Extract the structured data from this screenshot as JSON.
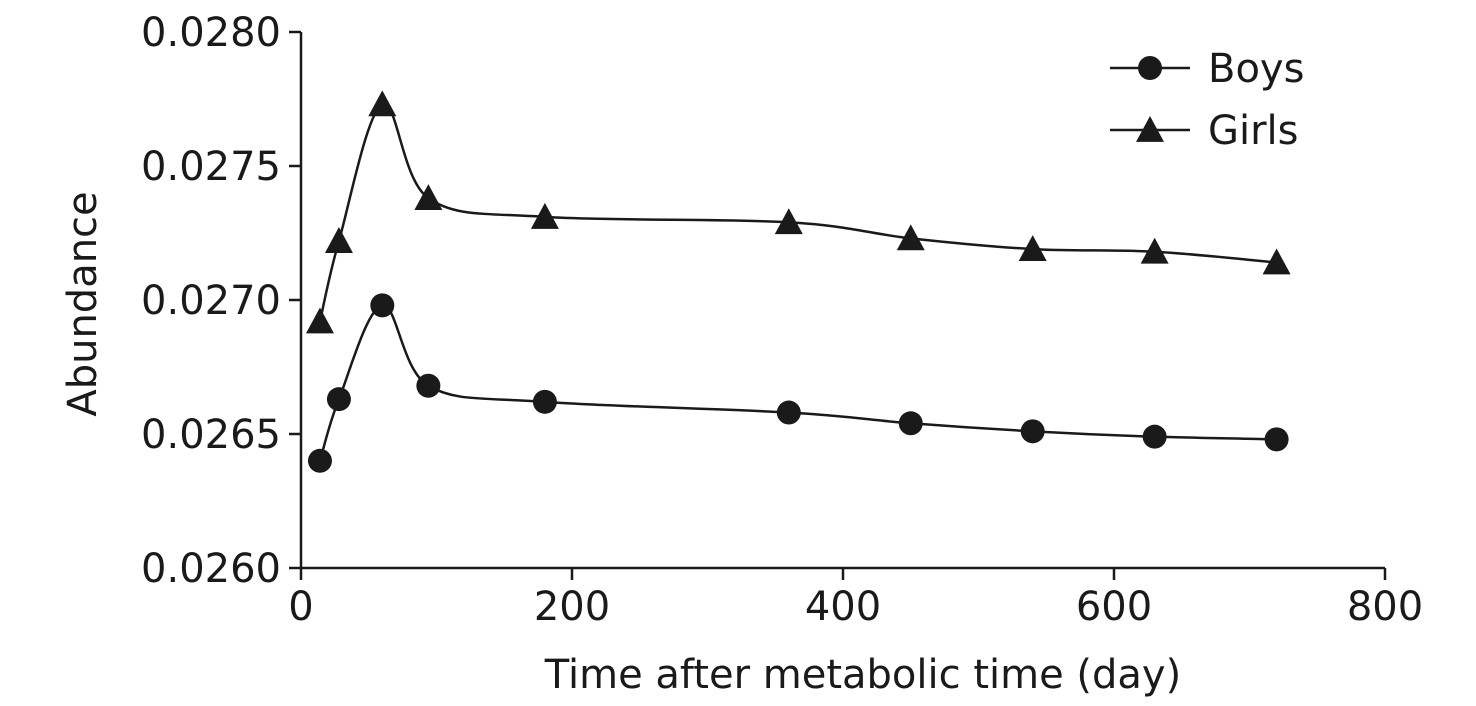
{
  "chart_data": {
    "type": "line",
    "xlabel": "Time after metabolic time (day)",
    "ylabel": "Abundance",
    "xlim": [
      0,
      800
    ],
    "ylim": [
      0.026,
      0.028
    ],
    "xticks": [
      0,
      200,
      400,
      600,
      800
    ],
    "xtick_labels": [
      "0",
      "200",
      "400",
      "600",
      "800"
    ],
    "yticks": [
      0.026,
      0.0265,
      0.027,
      0.0275,
      0.028
    ],
    "ytick_labels": [
      "0.0260",
      "0.0265",
      "0.0270",
      "0.0275",
      "0.0280"
    ],
    "grid": false,
    "legend_position": "top-right",
    "series": [
      {
        "name": "Boys",
        "marker": "circle",
        "color": "#1a1a1a",
        "points": [
          {
            "x": 14,
            "y": 0.0264
          },
          {
            "x": 28,
            "y": 0.02663
          },
          {
            "x": 60,
            "y": 0.02698
          },
          {
            "x": 94,
            "y": 0.02668
          },
          {
            "x": 180,
            "y": 0.02662
          },
          {
            "x": 360,
            "y": 0.02658
          },
          {
            "x": 450,
            "y": 0.02654
          },
          {
            "x": 540,
            "y": 0.02651
          },
          {
            "x": 630,
            "y": 0.02649
          },
          {
            "x": 720,
            "y": 0.02648
          }
        ]
      },
      {
        "name": "Girls",
        "marker": "triangle",
        "color": "#1a1a1a",
        "points": [
          {
            "x": 14,
            "y": 0.02692
          },
          {
            "x": 28,
            "y": 0.02722
          },
          {
            "x": 60,
            "y": 0.02773
          },
          {
            "x": 94,
            "y": 0.02738
          },
          {
            "x": 180,
            "y": 0.02731
          },
          {
            "x": 360,
            "y": 0.02729
          },
          {
            "x": 450,
            "y": 0.02723
          },
          {
            "x": 540,
            "y": 0.02719
          },
          {
            "x": 630,
            "y": 0.02718
          },
          {
            "x": 720,
            "y": 0.02714
          }
        ]
      }
    ]
  }
}
